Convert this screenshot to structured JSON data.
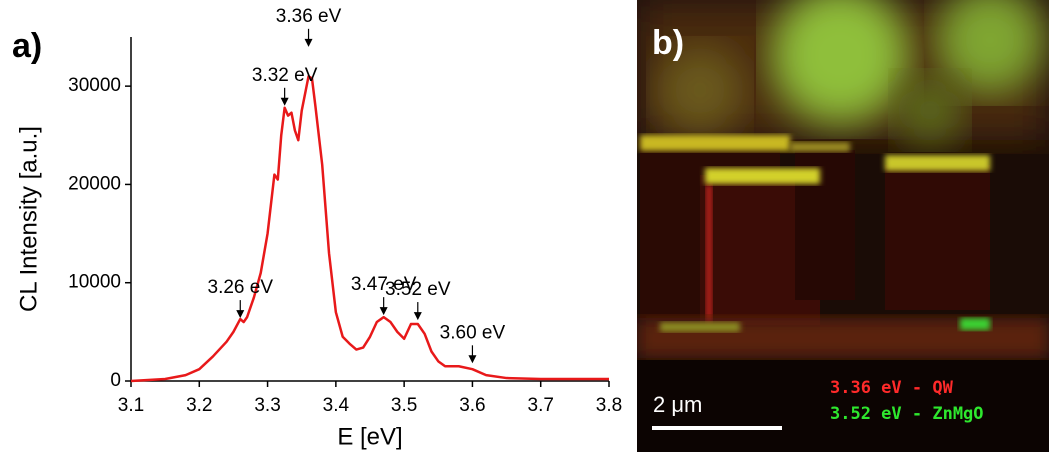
{
  "panel_label": "a)",
  "chart_data": {
    "type": "line",
    "xlabel": "E [eV]",
    "ylabel": "CL Intensity [a.u.]",
    "xlim": [
      3.1,
      3.8
    ],
    "xticks": [
      3.1,
      3.2,
      3.3,
      3.4,
      3.5,
      3.6,
      3.7,
      3.8
    ],
    "ylim": [
      0,
      35000
    ],
    "yticks": [
      0,
      10000,
      20000,
      30000
    ],
    "x": [
      3.1,
      3.15,
      3.18,
      3.2,
      3.22,
      3.24,
      3.25,
      3.26,
      3.265,
      3.27,
      3.28,
      3.29,
      3.3,
      3.31,
      3.315,
      3.32,
      3.325,
      3.33,
      3.335,
      3.34,
      3.345,
      3.35,
      3.36,
      3.365,
      3.37,
      3.38,
      3.39,
      3.4,
      3.41,
      3.42,
      3.43,
      3.44,
      3.45,
      3.46,
      3.47,
      3.48,
      3.49,
      3.5,
      3.51,
      3.52,
      3.53,
      3.54,
      3.55,
      3.56,
      3.58,
      3.6,
      3.62,
      3.65,
      3.7,
      3.8
    ],
    "series": [
      {
        "color": "#e8191a",
        "values": [
          0,
          200,
          600,
          1200,
          2500,
          4000,
          5000,
          6300,
          6000,
          6500,
          8500,
          11000,
          15000,
          21000,
          20500,
          25000,
          27800,
          27000,
          27300,
          25500,
          24500,
          27500,
          31000,
          30800,
          28000,
          22000,
          13000,
          7000,
          4500,
          3800,
          3200,
          3400,
          4500,
          6000,
          6500,
          6000,
          5000,
          4300,
          5800,
          5800,
          4800,
          3000,
          2000,
          1500,
          1500,
          1200,
          600,
          300,
          200,
          200
        ]
      }
    ],
    "annotations": [
      {
        "text": "3.26 eV",
        "x": 3.26,
        "y": 6400
      },
      {
        "text": "3.32 eV",
        "x": 3.325,
        "y": 28000
      },
      {
        "text": "3.36 eV",
        "x": 3.36,
        "y": 34000
      },
      {
        "text": "3.47 eV",
        "x": 3.47,
        "y": 6700
      },
      {
        "text": "3.52 eV",
        "x": 3.52,
        "y": 6200
      },
      {
        "text": "3.60 eV",
        "x": 3.6,
        "y": 1800
      }
    ]
  },
  "image_panel": {
    "label": "b)",
    "scale_bar": "2 μm",
    "legend": [
      {
        "text": "3.36 eV - QW",
        "color": "#ff2a2a"
      },
      {
        "text": "3.52 eV - ZnMgO",
        "color": "#2ee82e"
      }
    ]
  }
}
